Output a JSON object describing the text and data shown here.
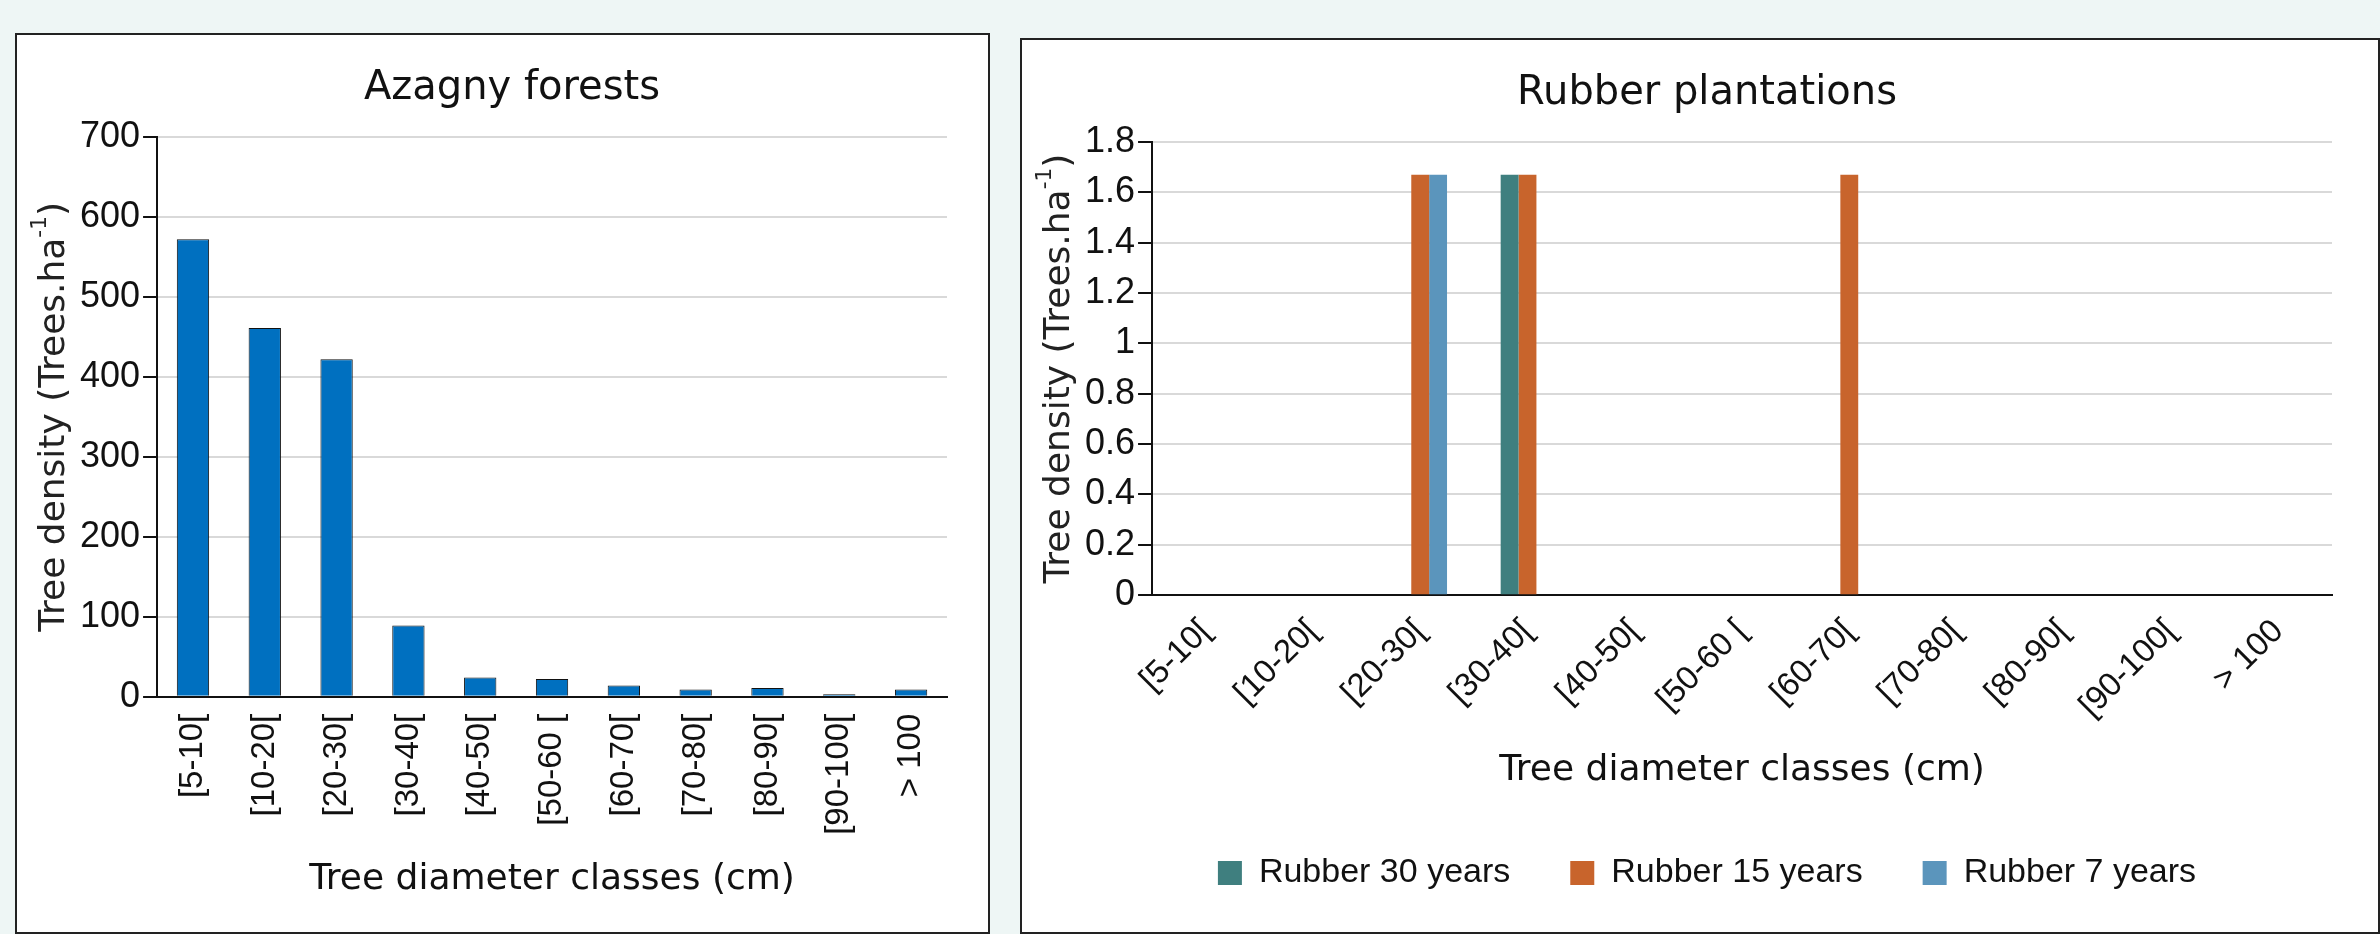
{
  "chart_data": [
    {
      "type": "bar",
      "title": "Azagny forests",
      "xlabel": "Tree diameter classes (cm)",
      "ylabel": "Tree density (Trees.ha$^{-1}$)",
      "categories": [
        "[5-10[",
        "[10-20[",
        "[20-30[",
        "[30-40[",
        "[40-50[",
        "[50-60 [",
        "[60-70[",
        "[70-80[",
        "[80-90[",
        "[90-100[",
        "> 100"
      ],
      "values": [
        572,
        461,
        422,
        89,
        24,
        22,
        14,
        9,
        11,
        3,
        9
      ],
      "color": "#0070c0",
      "ylim": [
        0,
        700
      ],
      "yticks": [
        0,
        100,
        200,
        300,
        400,
        500,
        600,
        700
      ],
      "grid": "y",
      "legend": false
    },
    {
      "type": "bar",
      "title": "Rubber plantations",
      "xlabel": "Tree diameter classes (cm)",
      "ylabel": "Tree density (Trees.ha$^{-1}$)",
      "categories": [
        "[5-10[",
        "[10-20[",
        "[20-30[",
        "[30-40[",
        "[40-50[",
        "[50-60 [",
        "[60-70[",
        "[70-80[",
        "[80-90[",
        "[90-100[",
        "> 100"
      ],
      "series": [
        {
          "name": "Rubber 30 years",
          "color": "#3f7f7f",
          "values": [
            0,
            0,
            0,
            1.67,
            0,
            0,
            0,
            0,
            0,
            0,
            0
          ]
        },
        {
          "name": "Rubber 15 years",
          "color": "#c8642c",
          "values": [
            0,
            0,
            1.67,
            1.67,
            0,
            0,
            1.67,
            0,
            0,
            0,
            0
          ]
        },
        {
          "name": "Rubber 7 years",
          "color": "#5b95bc",
          "values": [
            0,
            0,
            1.67,
            0,
            0,
            0,
            0,
            0,
            0,
            0,
            0
          ]
        }
      ],
      "ylim": [
        0,
        1.8
      ],
      "yticks": [
        0,
        0.2,
        0.4,
        0.6,
        0.8,
        1,
        1.2,
        1.4,
        1.6,
        1.8
      ],
      "grid": "y",
      "legend": "bottom"
    }
  ]
}
